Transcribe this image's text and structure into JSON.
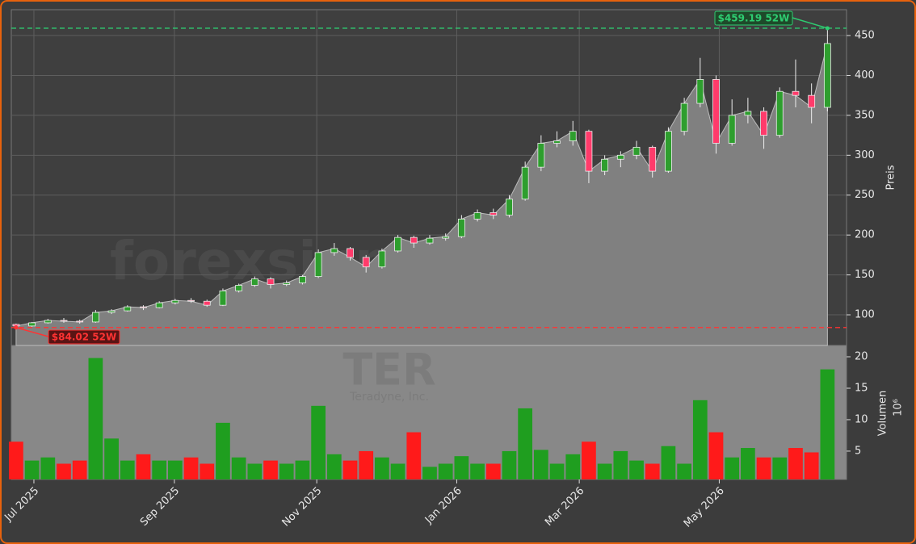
{
  "chart_data": [
    {
      "type": "candlestick",
      "y_label": "Preis",
      "up_color": "#2e9e2e",
      "down_color": "#ff3b6b",
      "area_color": "#808080",
      "grid": true,
      "open": [
        88,
        86,
        90,
        93,
        92,
        91,
        103,
        105,
        110,
        109,
        115,
        118,
        117,
        112,
        130,
        137,
        145,
        138,
        140,
        148,
        178,
        183,
        172,
        160,
        180,
        197,
        190,
        196,
        198,
        220,
        228,
        225,
        245,
        285,
        315,
        318,
        330,
        280,
        295,
        300,
        310,
        280,
        330,
        365,
        395,
        315,
        350,
        355,
        325,
        380,
        375,
        360
      ],
      "high": [
        89,
        91,
        95,
        96,
        94,
        106,
        107,
        112,
        112,
        117,
        120,
        121,
        119,
        133,
        139,
        148,
        147,
        143,
        150,
        182,
        190,
        185,
        175,
        183,
        200,
        199,
        200,
        202,
        225,
        232,
        233,
        250,
        292,
        325,
        330,
        343,
        332,
        300,
        305,
        318,
        312,
        335,
        372,
        422,
        400,
        370,
        372,
        360,
        385,
        420,
        390,
        459.19
      ],
      "low": [
        84.02,
        85,
        89,
        90,
        89,
        90,
        101,
        104,
        106,
        108,
        113,
        115,
        110,
        111,
        128,
        135,
        133,
        136,
        138,
        146,
        174,
        168,
        153,
        158,
        178,
        184,
        188,
        193,
        196,
        217,
        220,
        222,
        243,
        280,
        310,
        312,
        265,
        275,
        285,
        295,
        272,
        278,
        325,
        360,
        302,
        312,
        340,
        308,
        322,
        360,
        340,
        355
      ],
      "close": [
        86,
        90,
        93,
        92,
        91,
        103,
        105,
        110,
        109,
        115,
        118,
        117,
        112,
        130,
        137,
        145,
        138,
        140,
        148,
        178,
        183,
        172,
        160,
        180,
        197,
        190,
        196,
        198,
        220,
        228,
        225,
        245,
        285,
        315,
        318,
        330,
        280,
        295,
        300,
        310,
        280,
        330,
        365,
        395,
        315,
        350,
        355,
        325,
        380,
        375,
        360,
        440
      ],
      "ylim": [
        61.6,
        482.4
      ],
      "yticks": [
        100,
        150,
        200,
        250,
        300,
        350,
        400,
        450
      ],
      "xlim": [
        -0.3,
        52.2
      ],
      "xticks": [
        {
          "value": 1.12,
          "label": "Jul 2025"
        },
        {
          "value": 9.95,
          "label": "Sep 2025"
        },
        {
          "value": 18.9,
          "label": "Nov 2025"
        },
        {
          "value": 27.7,
          "label": "Jan 2026"
        },
        {
          "value": 35.4,
          "label": "Mar 2026"
        },
        {
          "value": 44.2,
          "label": "May 2026"
        }
      ],
      "annotations": [
        {
          "value": 459.19,
          "label": "$459.19 52W",
          "color": "#2ecc71"
        },
        {
          "value": 84.02,
          "label": "$84.02 52W",
          "color": "#ff3333"
        }
      ],
      "watermarks": {
        "site": "forexsignale.trade",
        "ticker": "TER",
        "company": "Teradyne, Inc."
      }
    },
    {
      "type": "bar",
      "y_label": "Volumen",
      "y_unit": "10⁶",
      "values": [
        6.5,
        3.5,
        4,
        3,
        3.5,
        19.8,
        7,
        3.5,
        4.5,
        3.5,
        3.5,
        4,
        3,
        9.5,
        4,
        3,
        3.5,
        3,
        3.5,
        12.2,
        4.5,
        3.5,
        5,
        4,
        3,
        8,
        2.5,
        3,
        4.2,
        3,
        3,
        5,
        11.8,
        5.2,
        3,
        4.5,
        6.5,
        3,
        5,
        3.5,
        3,
        5.8,
        3,
        13.1,
        8,
        4,
        5.5,
        4,
        4,
        5.5,
        4.8,
        18
      ],
      "ylim": [
        0.5,
        21.8
      ],
      "yticks": [
        5,
        10,
        15,
        20
      ]
    }
  ]
}
